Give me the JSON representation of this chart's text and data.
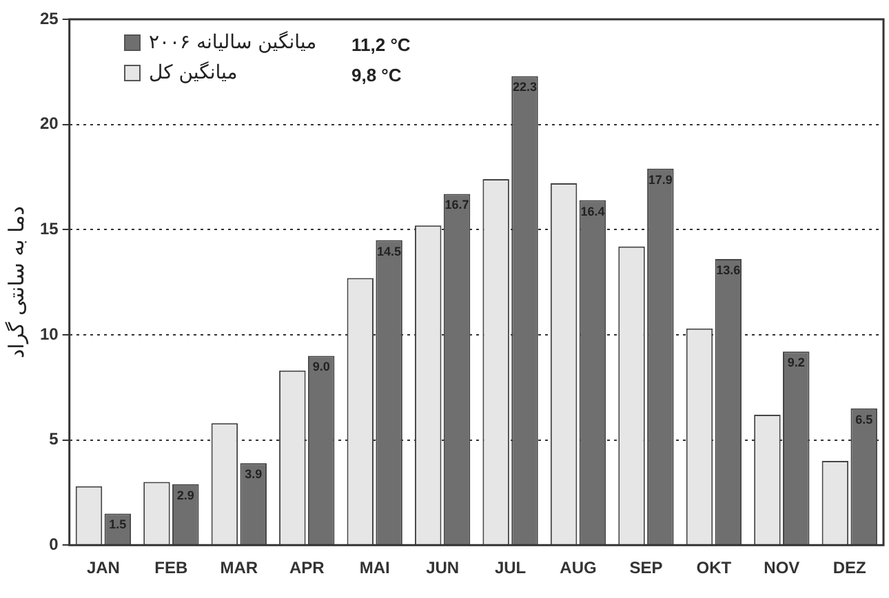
{
  "chart_data": {
    "type": "bar",
    "ylabel": "دما به سانتی گراد",
    "categories": [
      "JAN",
      "FEB",
      "MAR",
      "APR",
      "MAI",
      "JUN",
      "JUL",
      "AUG",
      "SEP",
      "OKT",
      "NOV",
      "DEZ"
    ],
    "series": [
      {
        "name": "میانگین کل",
        "color": "#e6e6e6",
        "values": [
          2.8,
          3.0,
          5.8,
          8.3,
          12.7,
          15.2,
          17.4,
          17.2,
          14.2,
          10.3,
          6.2,
          4.0
        ]
      },
      {
        "name": "میانگین سالیانه ۲۰۰۶",
        "color": "#6f6f6f",
        "values": [
          1.5,
          2.9,
          3.9,
          9.0,
          14.5,
          16.7,
          22.3,
          16.4,
          17.9,
          13.6,
          9.2,
          6.5
        ],
        "value_labels": [
          "1.5",
          "2.9",
          "3.9",
          "9.0",
          "14.5",
          "16.7",
          "22.3",
          "16.4",
          "17.9",
          "13.6",
          "9.2",
          "6.5"
        ]
      }
    ],
    "annotations": [
      "11,2 °C",
      "9,8 °C"
    ],
    "ylim": [
      0,
      25
    ],
    "yticks": [
      0,
      5,
      10,
      15,
      20,
      25
    ],
    "grid": "y",
    "line_style": "dotted",
    "legend": "top left"
  }
}
